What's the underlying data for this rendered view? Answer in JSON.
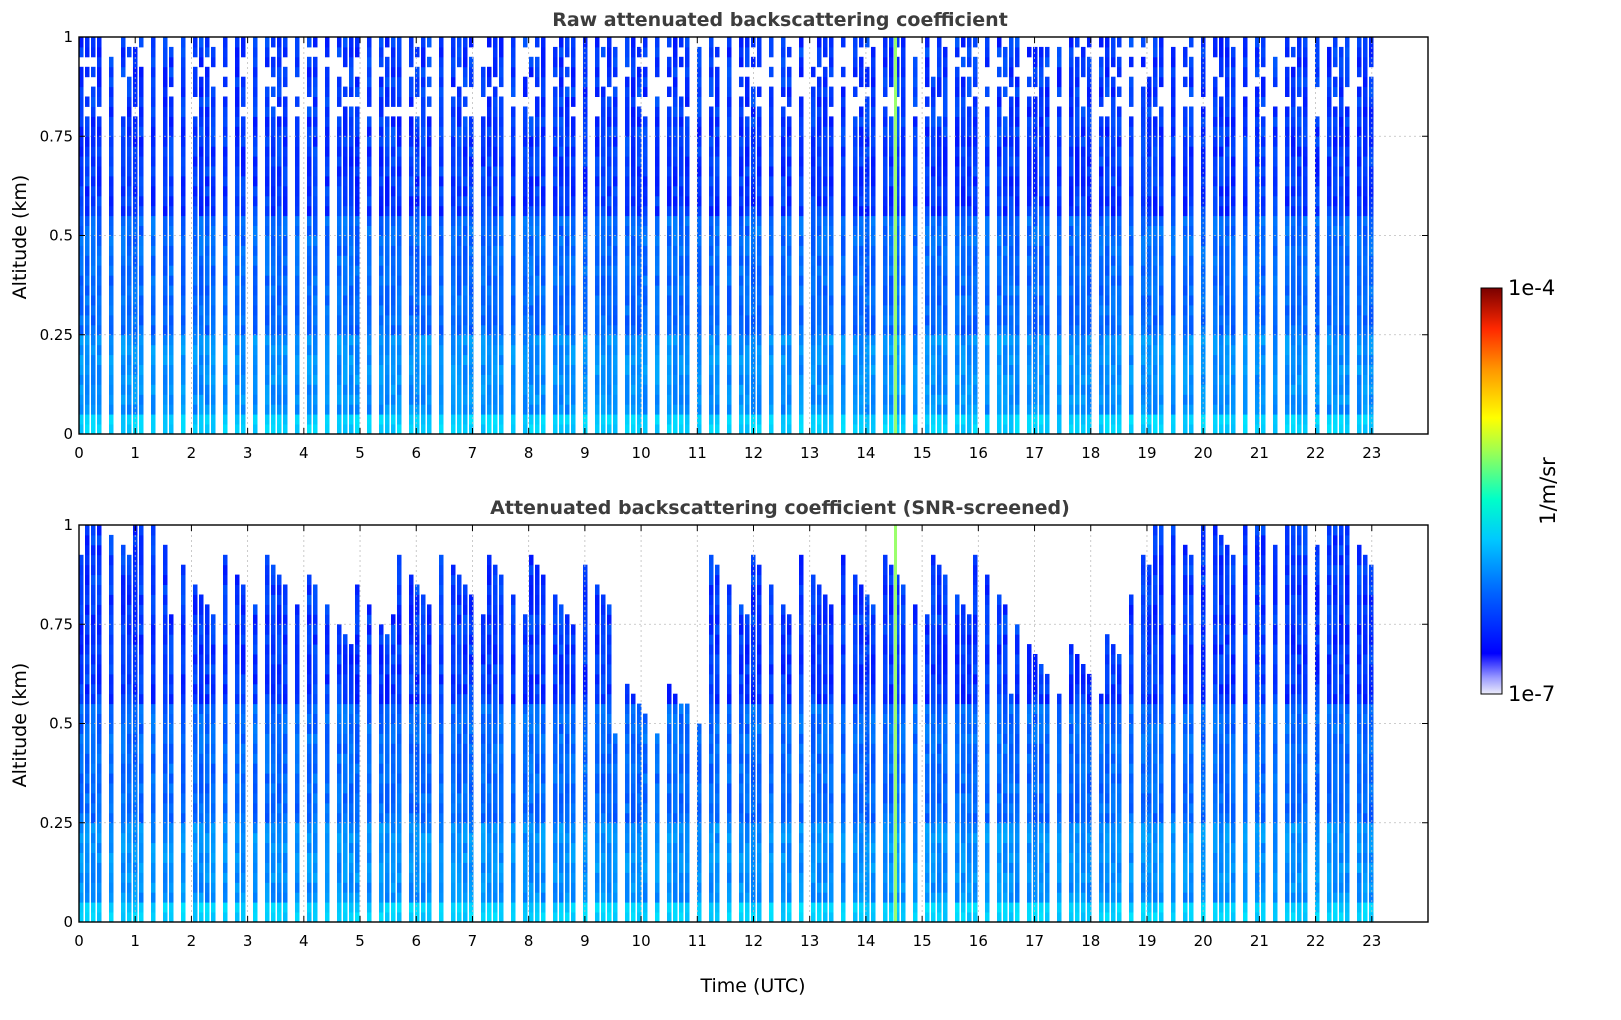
{
  "chart_data": [
    {
      "type": "heatmap",
      "title": "Raw attenuated backscattering coefficient",
      "xlabel": "",
      "ylabel": "Altitude (km)",
      "xlim": [
        0,
        24
      ],
      "ylim": [
        0,
        1
      ],
      "xticks": [
        "0",
        "1",
        "2",
        "3",
        "4",
        "5",
        "6",
        "7",
        "8",
        "9",
        "10",
        "11",
        "12",
        "13",
        "14",
        "15",
        "16",
        "17",
        "18",
        "19",
        "20",
        "21",
        "22",
        "23"
      ],
      "yticks": [
        "0",
        "0.25",
        "0.5",
        "0.75",
        "1"
      ],
      "grid": true,
      "data_time_range_utc": [
        0,
        23
      ],
      "screened": false
    },
    {
      "type": "heatmap",
      "title": "Attenuated backscattering coefficient (SNR-screened)",
      "xlabel": "Time (UTC)",
      "ylabel": "Altitude (km)",
      "xlim": [
        0,
        24
      ],
      "ylim": [
        0,
        1
      ],
      "xticks": [
        "0",
        "1",
        "2",
        "3",
        "4",
        "5",
        "6",
        "7",
        "8",
        "9",
        "10",
        "11",
        "12",
        "13",
        "14",
        "15",
        "16",
        "17",
        "18",
        "19",
        "20",
        "21",
        "22",
        "23"
      ],
      "yticks": [
        "0",
        "0.25",
        "0.5",
        "0.75",
        "1"
      ],
      "grid": true,
      "data_time_range_utc": [
        0,
        23
      ],
      "screened": true
    }
  ],
  "colorbar": {
    "label": "1/m/sr",
    "min_label": "1e-7",
    "max_label": "1e-4",
    "scale": "log",
    "colormap": [
      "#e6e6fa",
      "#0000ff",
      "#00c8ff",
      "#00ffc8",
      "#ffff00",
      "#ff6400",
      "#c80000",
      "#780000"
    ]
  }
}
